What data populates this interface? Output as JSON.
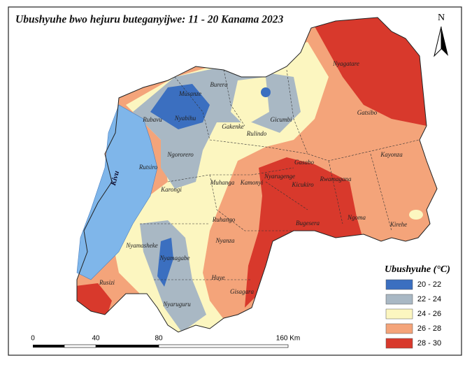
{
  "title": "Ubushyuhe bwo hejuru buteganyijwe: 11 - 20 Kanama 2023",
  "north": "N",
  "lake_label": "Kivu",
  "districts": [
    "Nyagatare",
    "Burera",
    "Musanze",
    "Nyabihu",
    "Rubavu",
    "Gicumbi",
    "Gakenke",
    "Rulindo",
    "Gatsibo",
    "Kayonza",
    "Ngororero",
    "Rutsiro",
    "Gasabo",
    "Nyarugenge",
    "Kicukiro",
    "Rwamagana",
    "Muhanga",
    "Kamonyi",
    "Karongi",
    "Ruhango",
    "Bugesera",
    "Ngoma",
    "Kirehe",
    "Nyanza",
    "Nyamasheke",
    "Nyamagabe",
    "Huye",
    "Rusizi",
    "Gisagara",
    "Nyaruguru"
  ],
  "legend": {
    "title": "Ubushyuhe (°C)",
    "items": [
      {
        "label": "20 - 22",
        "color": "#3b6fc0"
      },
      {
        "label": "22 - 24",
        "color": "#a9b8c4"
      },
      {
        "label": "24 - 26",
        "color": "#fcf6c0"
      },
      {
        "label": "26 - 28",
        "color": "#f4a47a"
      },
      {
        "label": "28 - 30",
        "color": "#d8392c"
      }
    ]
  },
  "scale": [
    "0",
    "40",
    "80",
    "160 Km"
  ]
}
